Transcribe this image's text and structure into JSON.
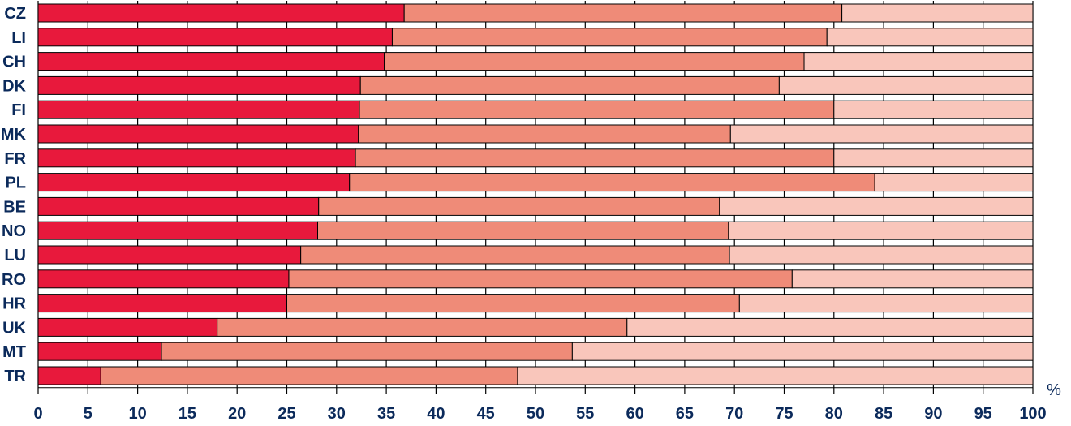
{
  "chart_data": {
    "type": "bar",
    "orientation": "horizontal",
    "stacked": true,
    "categories": [
      "CZ",
      "LI",
      "CH",
      "DK",
      "FI",
      "MK",
      "FR",
      "PL",
      "BE",
      "NO",
      "LU",
      "RO",
      "HR",
      "UK",
      "MT",
      "TR"
    ],
    "series": [
      {
        "color": "#e8193c",
        "values": [
          36.8,
          35.6,
          34.8,
          32.4,
          32.3,
          32.2,
          31.9,
          31.3,
          28.2,
          28.1,
          26.4,
          25.2,
          25.0,
          18.0,
          12.4,
          6.3
        ]
      },
      {
        "color": "#ef8b78",
        "values": [
          44.0,
          43.7,
          42.2,
          42.1,
          47.7,
          37.4,
          48.1,
          52.8,
          40.3,
          41.3,
          43.1,
          50.6,
          45.5,
          41.2,
          41.3,
          41.9
        ]
      },
      {
        "color": "#f9c6bb",
        "values": [
          19.2,
          20.7,
          23.0,
          25.5,
          20.0,
          30.4,
          20.0,
          15.9,
          31.5,
          30.6,
          30.5,
          24.2,
          29.5,
          40.8,
          46.3,
          51.8
        ]
      }
    ],
    "x_ticks": [
      "0",
      "5",
      "10",
      "15",
      "20",
      "25",
      "30",
      "35",
      "40",
      "45",
      "50",
      "55",
      "60",
      "65",
      "70",
      "75",
      "80",
      "85",
      "90",
      "95",
      "100"
    ],
    "xlim": [
      0,
      100
    ],
    "x_unit": "%",
    "grid": true,
    "legend": "none",
    "axis_color": "#0b2a5b",
    "grid_color": "#000000"
  }
}
